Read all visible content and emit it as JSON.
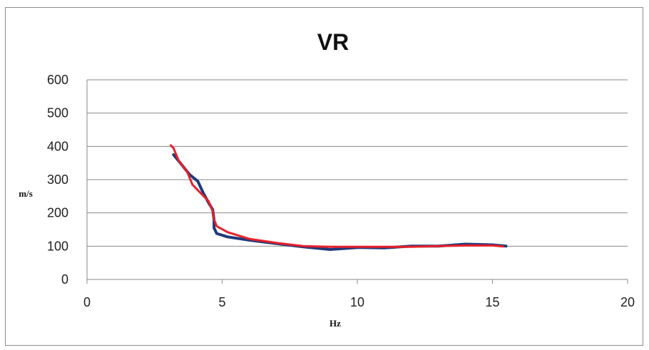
{
  "chart_data": {
    "type": "line",
    "title": "VR",
    "xlabel": "Hz",
    "ylabel": "m/s",
    "xlim": [
      0,
      20
    ],
    "ylim": [
      0,
      600
    ],
    "x_ticks": [
      0,
      5,
      10,
      15,
      20
    ],
    "y_ticks": [
      0,
      100,
      200,
      300,
      400,
      500,
      600
    ],
    "grid": "horizontal",
    "legend": "none",
    "series": [
      {
        "color": "#1f3a7a",
        "points": [
          [
            3.2,
            375
          ],
          [
            3.5,
            345
          ],
          [
            3.8,
            315
          ],
          [
            4.1,
            295
          ],
          [
            4.3,
            260
          ],
          [
            4.5,
            230
          ],
          [
            4.65,
            210
          ],
          [
            4.7,
            180
          ],
          [
            4.7,
            155
          ],
          [
            4.8,
            138
          ],
          [
            5.2,
            128
          ],
          [
            6,
            118
          ],
          [
            7,
            108
          ],
          [
            8,
            98
          ],
          [
            9,
            90
          ],
          [
            10,
            96
          ],
          [
            11,
            95
          ],
          [
            12,
            100
          ],
          [
            13,
            100
          ],
          [
            14,
            106
          ],
          [
            15,
            104
          ],
          [
            15.5,
            100
          ]
        ]
      },
      {
        "color": "#e8202a",
        "points": [
          [
            3.1,
            403
          ],
          [
            3.2,
            395
          ],
          [
            3.4,
            355
          ],
          [
            3.7,
            325
          ],
          [
            3.9,
            285
          ],
          [
            4.2,
            260
          ],
          [
            4.5,
            235
          ],
          [
            4.65,
            205
          ],
          [
            4.7,
            180
          ],
          [
            4.8,
            160
          ],
          [
            5.2,
            142
          ],
          [
            6,
            122
          ],
          [
            7,
            110
          ],
          [
            8,
            100
          ],
          [
            9,
            98
          ],
          [
            10,
            98
          ],
          [
            11,
            98
          ],
          [
            12,
            98
          ],
          [
            13,
            100
          ],
          [
            14,
            102
          ],
          [
            15,
            102
          ],
          [
            15.4,
            99
          ]
        ]
      }
    ]
  }
}
